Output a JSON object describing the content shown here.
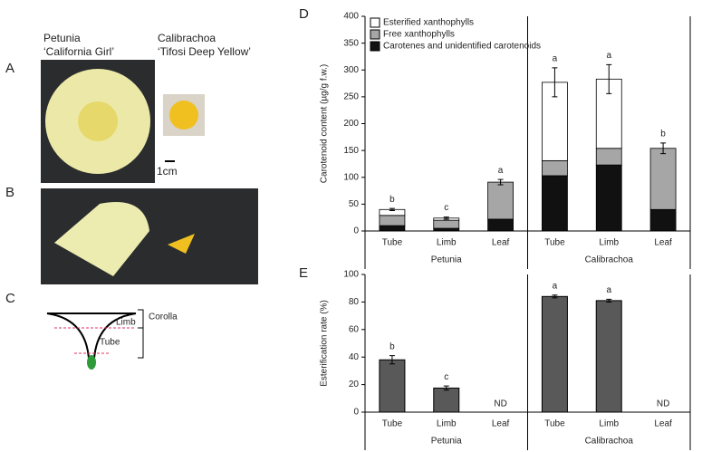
{
  "figure": {
    "panels": [
      "A",
      "B",
      "C",
      "D",
      "E"
    ],
    "petunia": "Petunia",
    "petunia_cultivar": "‘California Girl’",
    "calibrachoa": "Calibrachoa",
    "calibrachoa_cultivar": "‘Tifosi Deep Yellow’",
    "scale": "1cm",
    "limb": "Limb",
    "tube": "Tube",
    "corolla": "Corolla"
  },
  "chart_data": [
    {
      "type": "stacked-bar",
      "ylabel": "Carotenoid content (µg/g f.w.)",
      "categories": [
        "Tube",
        "Limb",
        "Leaf",
        "Tube",
        "Limb",
        "Leaf"
      ],
      "groups": [
        "Petunia",
        "Calibrachoa"
      ],
      "series": [
        {
          "name": "Esterified xanthophylls",
          "color": "#ffffff",
          "values": [
            11,
            4,
            0,
            146,
            129,
            0
          ]
        },
        {
          "name": "Free xanthophylls",
          "color": "#a6a6a6",
          "values": [
            19,
            15,
            69,
            28,
            31,
            114
          ]
        },
        {
          "name": "Carotenes and unidentified carotenoids",
          "color": "#111111",
          "values": [
            10,
            5,
            22,
            103,
            123,
            40
          ]
        }
      ],
      "errors": [
        2,
        2,
        5,
        27,
        27,
        10
      ],
      "significance_letters": [
        "b",
        "c",
        "a",
        "a",
        "a",
        "b"
      ],
      "ylim": [
        0,
        400
      ],
      "yticks": [
        0,
        50,
        100,
        150,
        200,
        250,
        300,
        350,
        400
      ],
      "legend": "top-left"
    },
    {
      "type": "bar",
      "ylabel": "Esterification rate (%)",
      "categories": [
        "Tube",
        "Limb",
        "Leaf",
        "Tube",
        "Limb",
        "Leaf"
      ],
      "groups": [
        "Petunia",
        "Calibrachoa"
      ],
      "values": [
        38,
        17.5,
        null,
        84,
        81,
        null
      ],
      "errors": [
        3,
        1.5,
        null,
        1,
        1,
        null
      ],
      "nd_label": "ND",
      "color": "#595959",
      "significance_letters": [
        "b",
        "c",
        null,
        "a",
        "a",
        null
      ],
      "ylim": [
        0,
        100
      ],
      "yticks": [
        0,
        20,
        40,
        60,
        80,
        100
      ]
    }
  ]
}
